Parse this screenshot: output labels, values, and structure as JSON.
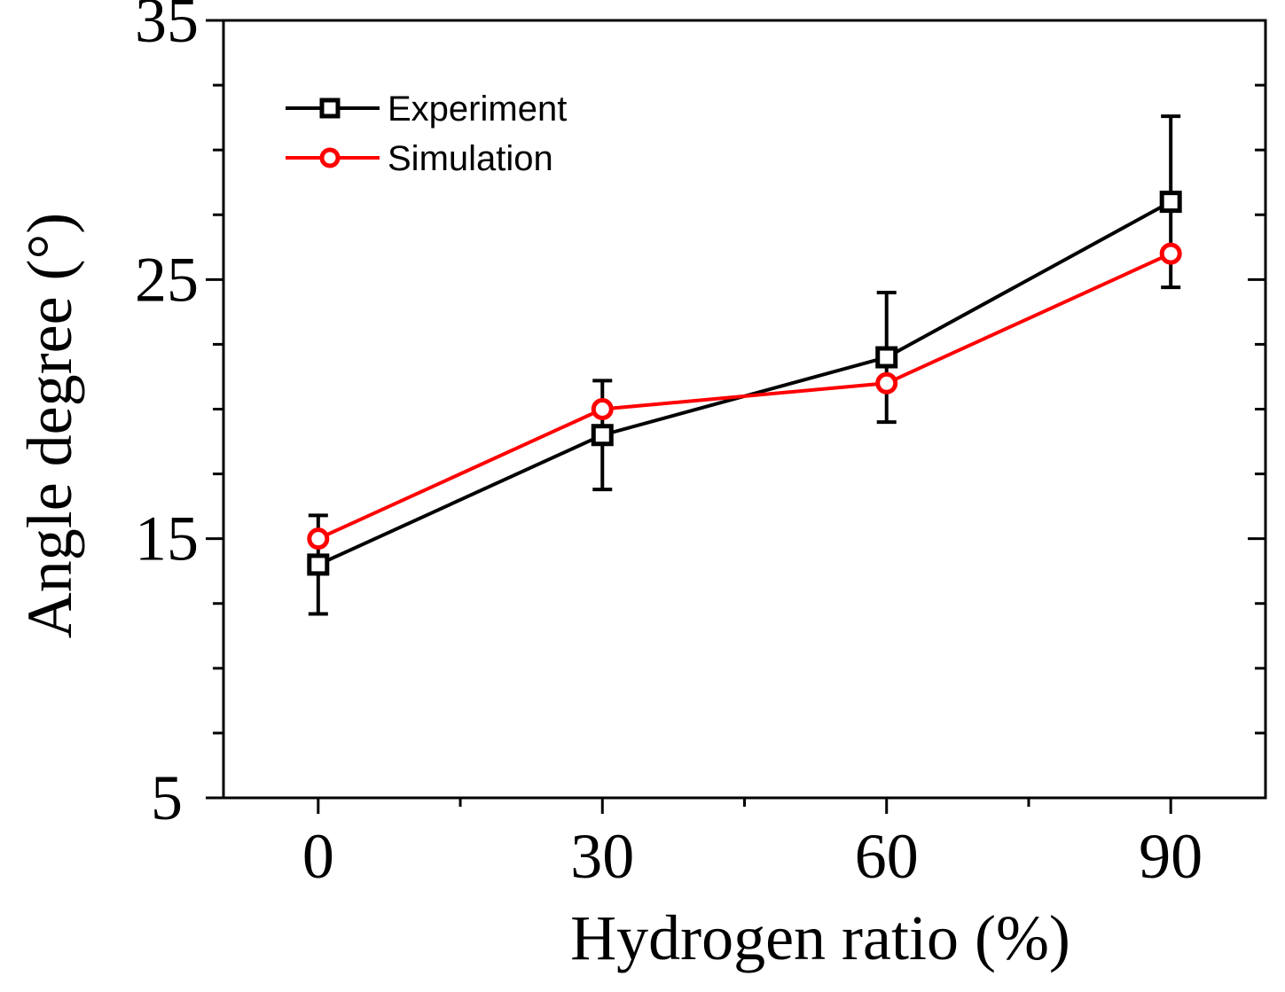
{
  "chart_data": {
    "type": "line",
    "title": "",
    "xlabel": "Hydrogen ratio (%)",
    "ylabel": "Angle degree (°)",
    "x": [
      0,
      30,
      60,
      90
    ],
    "xlim": [
      -10,
      100
    ],
    "ylim": [
      5,
      35
    ],
    "x_ticks": [
      0,
      30,
      60,
      90
    ],
    "x_tick_labels": [
      "0",
      "30",
      "60",
      "90"
    ],
    "y_ticks": [
      5,
      15,
      25,
      35
    ],
    "y_tick_labels": [
      "5",
      "15",
      "25",
      "35"
    ],
    "grid": false,
    "legend_position": "top-left",
    "series": [
      {
        "name": "Experiment",
        "color": "#000000",
        "marker": "square-open",
        "values": [
          14,
          19,
          22,
          28
        ],
        "error": [
          1.9,
          2.1,
          2.5,
          3.3
        ]
      },
      {
        "name": "Simulation",
        "color": "#ff0000",
        "marker": "circle-open",
        "values": [
          15,
          20,
          21,
          26
        ]
      }
    ]
  }
}
